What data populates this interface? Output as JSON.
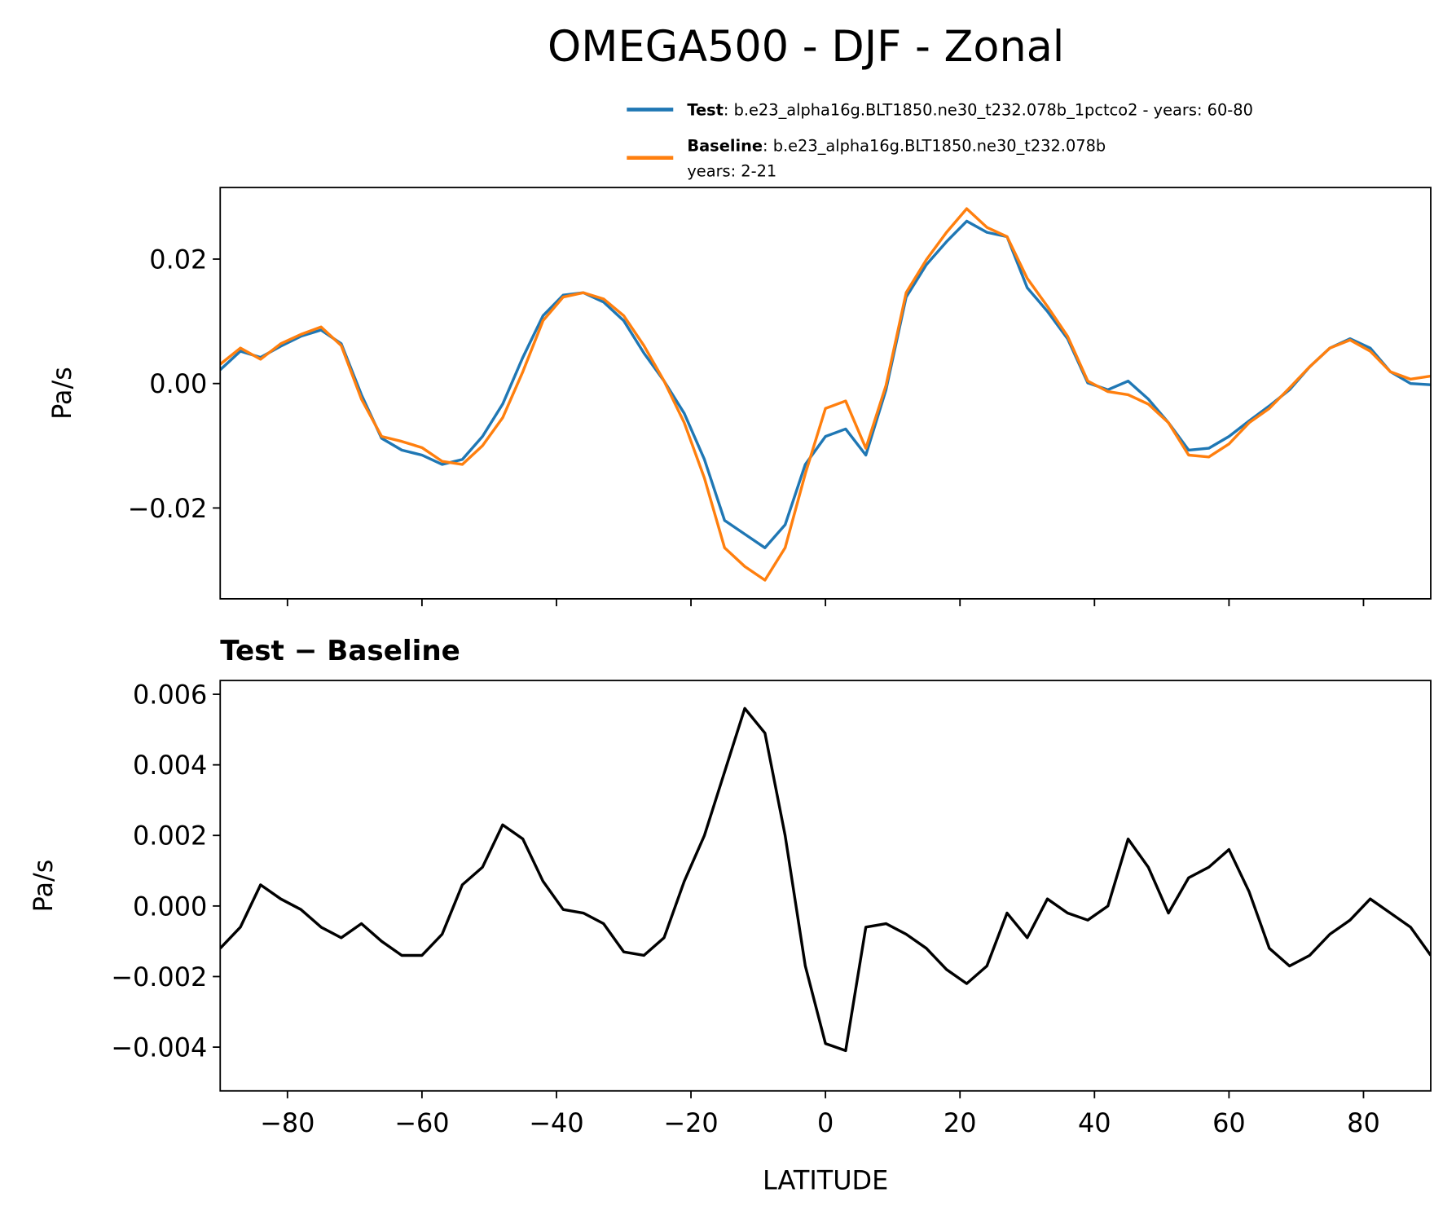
{
  "chart_data": [
    {
      "type": "line",
      "title": "OMEGA500 - DJF - Zonal",
      "ylabel": "Pa/s",
      "x": [
        -90,
        -87,
        -84,
        -81,
        -78,
        -75,
        -72,
        -69,
        -66,
        -63,
        -60,
        -57,
        -54,
        -51,
        -48,
        -45,
        -42,
        -39,
        -36,
        -33,
        -30,
        -27,
        -24,
        -21,
        -18,
        -15,
        -12,
        -9,
        -6,
        -3,
        0,
        3,
        6,
        9,
        12,
        15,
        18,
        21,
        24,
        27,
        30,
        33,
        36,
        39,
        42,
        45,
        48,
        51,
        54,
        57,
        60,
        63,
        66,
        69,
        72,
        75,
        78,
        81,
        84,
        87,
        90
      ],
      "series": [
        {
          "name": "Test",
          "description": [
            ": b.e23_alpha16g.BLT1850.ne30_t232.078b_1pctco2 - years: 60-80"
          ],
          "color": "#1f77b4",
          "values": [
            0.0022,
            0.0052,
            0.0042,
            0.006,
            0.0076,
            0.0086,
            0.0064,
            -0.0018,
            -0.0088,
            -0.0107,
            -0.0115,
            -0.013,
            -0.0122,
            -0.0085,
            -0.0033,
            0.0042,
            0.0109,
            0.0142,
            0.0146,
            0.0131,
            0.0101,
            0.0049,
            0.0004,
            -0.0048,
            -0.0122,
            -0.022,
            -0.0242,
            -0.0264,
            -0.0227,
            -0.013,
            -0.0085,
            -0.0073,
            -0.0115,
            -0.001,
            0.0139,
            0.0191,
            0.0228,
            0.0261,
            0.0243,
            0.0236,
            0.0154,
            0.0116,
            0.0072,
            0.0001,
            -0.001,
            0.0004,
            -0.0025,
            -0.0063,
            -0.0107,
            -0.0104,
            -0.0085,
            -0.006,
            -0.0036,
            -0.001,
            0.0027,
            0.0057,
            0.0072,
            0.0057,
            0.0019,
            0.0,
            -0.0002
          ]
        },
        {
          "name": "Baseline",
          "description": [
            ": b.e23_alpha16g.BLT1850.ne30_t232.078b",
            "years: 2-21"
          ],
          "color": "#ff7f0e",
          "values": [
            0.0031,
            0.0057,
            0.0039,
            0.0064,
            0.0079,
            0.0091,
            0.0061,
            -0.0025,
            -0.0085,
            -0.0093,
            -0.0103,
            -0.0125,
            -0.013,
            -0.01,
            -0.0055,
            0.0019,
            0.0101,
            0.0139,
            0.0146,
            0.0136,
            0.0109,
            0.0061,
            0.0004,
            -0.0063,
            -0.0152,
            -0.0264,
            -0.0294,
            -0.0316,
            -0.0264,
            -0.0145,
            -0.004,
            -0.0028,
            -0.0104,
            -0.0003,
            0.0146,
            0.0199,
            0.0243,
            0.0281,
            0.0251,
            0.0236,
            0.0169,
            0.0124,
            0.0076,
            0.0004,
            -0.0013,
            -0.0018,
            -0.0033,
            -0.0063,
            -0.0115,
            -0.0118,
            -0.0097,
            -0.0063,
            -0.004,
            -0.0007,
            0.0027,
            0.0057,
            0.007,
            0.0052,
            0.0019,
            0.0007,
            0.0012
          ]
        }
      ],
      "xlim": [
        -90,
        90
      ],
      "xticks": [
        -80,
        -60,
        -40,
        -20,
        0,
        20,
        40,
        60,
        80
      ],
      "ylim": [
        -0.0346,
        0.0315
      ],
      "yticks": [
        {
          "value": -0.02,
          "label": "−0.02"
        },
        {
          "value": 0,
          "label": "0.00"
        },
        {
          "value": 0.02,
          "label": "0.02"
        }
      ],
      "legend": "upper right outside"
    },
    {
      "type": "line",
      "title": "Test − Baseline",
      "ylabel": "Pa/s",
      "xlabel": "LATITUDE",
      "x": [
        -90,
        -87,
        -84,
        -81,
        -78,
        -75,
        -72,
        -69,
        -66,
        -63,
        -60,
        -57,
        -54,
        -51,
        -48,
        -45,
        -42,
        -39,
        -36,
        -33,
        -30,
        -27,
        -24,
        -21,
        -18,
        -15,
        -12,
        -9,
        -6,
        -3,
        0,
        3,
        6,
        9,
        12,
        15,
        18,
        21,
        24,
        27,
        30,
        33,
        36,
        39,
        42,
        45,
        48,
        51,
        54,
        57,
        60,
        63,
        66,
        69,
        72,
        75,
        78,
        81,
        84,
        87,
        90
      ],
      "series": [
        {
          "color": "#000000",
          "values": [
            -0.0012,
            -0.0006,
            0.0006,
            0.0002,
            -0.0001,
            -0.0006,
            -0.0009,
            -0.0005,
            -0.001,
            -0.0014,
            -0.0014,
            -0.0008,
            0.0006,
            0.0011,
            0.0023,
            0.0019,
            0.0007,
            -0.0001,
            -0.0002,
            -0.0005,
            -0.0013,
            -0.0014,
            -0.0009,
            0.0007,
            0.002,
            0.0038,
            0.0056,
            0.0049,
            0.002,
            -0.0017,
            -0.0039,
            -0.0041,
            -0.0006,
            -0.0005,
            -0.0008,
            -0.0012,
            -0.0018,
            -0.0022,
            -0.0017,
            -0.0002,
            -0.0009,
            0.0002,
            -0.0002,
            -0.0004,
            0.0,
            0.0019,
            0.0011,
            -0.0002,
            0.0008,
            0.0011,
            0.0016,
            0.0004,
            -0.0012,
            -0.0017,
            -0.0014,
            -0.0008,
            -0.0004,
            0.0002,
            -0.0002,
            -0.0006,
            -0.0014
          ]
        }
      ],
      "xlim": [
        -90,
        90
      ],
      "xticks": [
        {
          "value": -80,
          "label": "−80"
        },
        {
          "value": -60,
          "label": "−60"
        },
        {
          "value": -40,
          "label": "−40"
        },
        {
          "value": -20,
          "label": "−20"
        },
        0,
        20,
        40,
        60,
        80
      ],
      "ylim": [
        -0.00524,
        0.00639
      ],
      "yticks": [
        {
          "value": -0.004,
          "label": "−0.004"
        },
        {
          "value": -0.002,
          "label": "−0.002"
        },
        {
          "value": 0,
          "label": "0.000"
        },
        {
          "value": 0.002,
          "label": "0.002"
        },
        {
          "value": 0.004,
          "label": "0.004"
        },
        {
          "value": 0.006,
          "label": "0.006"
        }
      ]
    }
  ]
}
